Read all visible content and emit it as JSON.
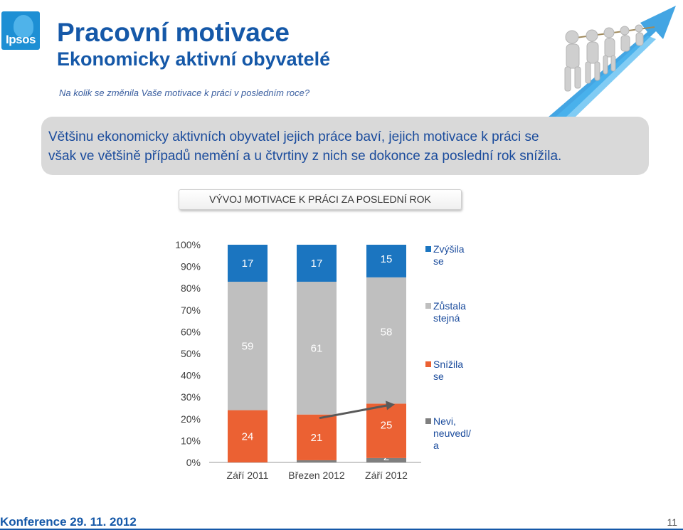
{
  "header": {
    "logo_text": "Ipsos",
    "title": "Pracovní motivace",
    "subtitle": "Ekonomicky aktivní obyvatelé",
    "question": "Na kolik se změnila Vaše motivace k práci v posledním roce?"
  },
  "summary": {
    "line1": "Většinu ekonomicky aktivních obyvatel jejich práce baví, jejich motivace k práci se",
    "line2": "však ve většině případů nemění a u čtvrtiny z nich se dokonce za poslední rok snížila."
  },
  "chart_title": "VÝVOJ MOTIVACE K PRÁCI ZA POSLEDNÍ ROK",
  "footer": {
    "conference": "Konference  29. 11. 2012",
    "page_number": "11"
  },
  "colors": {
    "brand": "#1558a8",
    "increased": "#1b75c0",
    "same": "#bfbfbf",
    "decreased": "#eb6133",
    "dont_know": "#7f7f7f",
    "summary_box": "#d9d9d9"
  },
  "chart_data": {
    "type": "bar",
    "stacked": true,
    "categories": [
      "Září 2011",
      "Březen 2012",
      "Září 2012"
    ],
    "series": [
      {
        "name": "Nevi, neuvedl/a",
        "legend_lines": [
          "Nevi,",
          "neuvedl/",
          "a"
        ],
        "color": "#7f7f7f",
        "values": [
          0,
          1,
          2
        ]
      },
      {
        "name": "Snížila se",
        "legend_lines": [
          "Snížila",
          "se"
        ],
        "color": "#eb6133",
        "values": [
          24,
          21,
          25
        ]
      },
      {
        "name": "Zůstala stejná",
        "legend_lines": [
          "Zůstala",
          "stejná"
        ],
        "color": "#bfbfbf",
        "values": [
          59,
          61,
          58
        ]
      },
      {
        "name": "Zvýšila se",
        "legend_lines": [
          "Zvýšila",
          "se"
        ],
        "color": "#1b75c0",
        "values": [
          17,
          17,
          15
        ]
      }
    ],
    "yticks": [
      "0%",
      "10%",
      "20%",
      "30%",
      "40%",
      "50%",
      "60%",
      "70%",
      "80%",
      "90%",
      "100%"
    ],
    "ylim": [
      0,
      100
    ],
    "legend_position": "right",
    "grid": false
  }
}
